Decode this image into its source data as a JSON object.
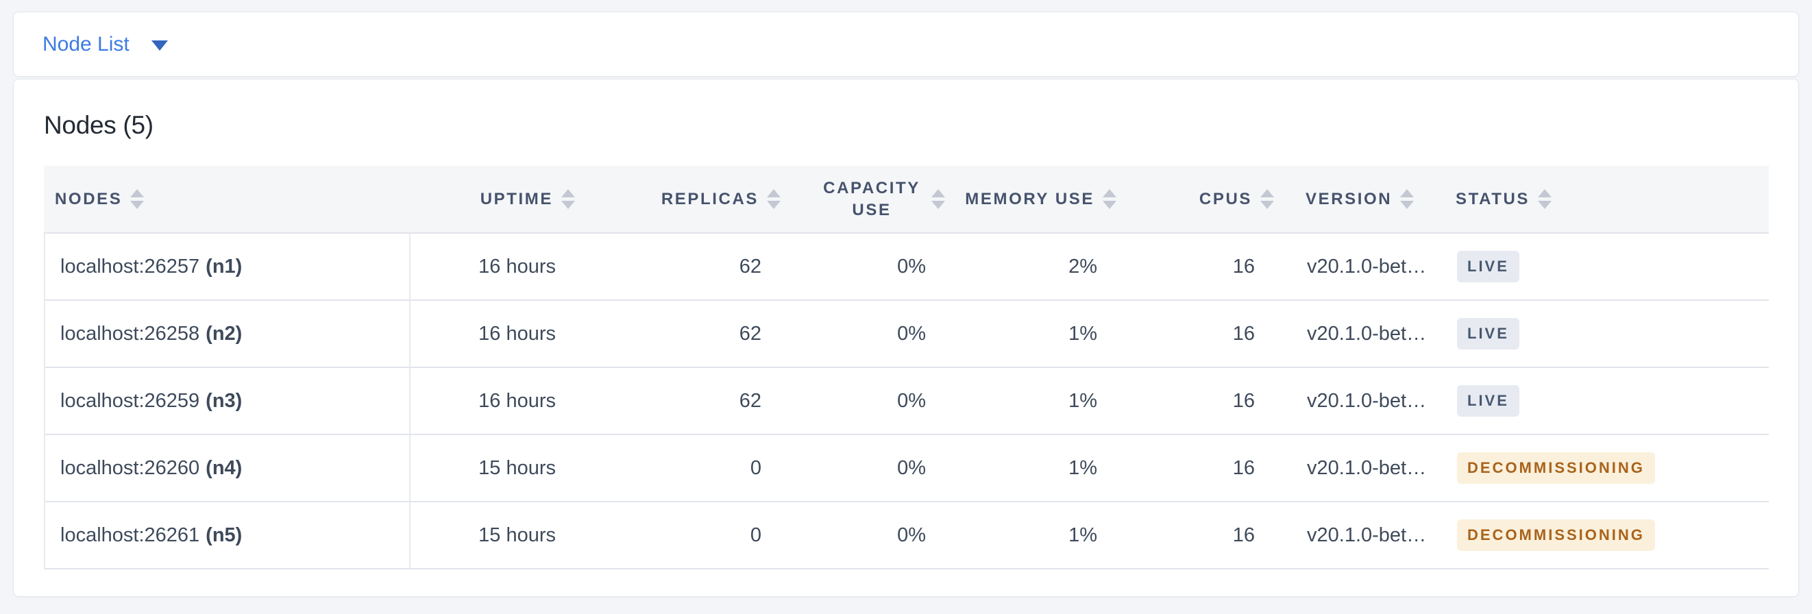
{
  "topbar": {
    "dropdown_label": "Node List"
  },
  "main": {
    "title": "Nodes (5)"
  },
  "table": {
    "columns": [
      {
        "id": "nodes",
        "label": "NODES"
      },
      {
        "id": "uptime",
        "label": "UPTIME"
      },
      {
        "id": "replicas",
        "label": "REPLICAS"
      },
      {
        "id": "capacity",
        "label": "CAPACITY USE"
      },
      {
        "id": "memory",
        "label": "MEMORY USE"
      },
      {
        "id": "cpus",
        "label": "CPUS"
      },
      {
        "id": "version",
        "label": "VERSION"
      },
      {
        "id": "status",
        "label": "STATUS"
      }
    ],
    "rows": [
      {
        "node_address": "localhost:26257",
        "node_id": "(n1)",
        "uptime": "16 hours",
        "replicas": "62",
        "capacity_use": "0%",
        "memory_use": "2%",
        "cpus": "16",
        "version": "v20.1.0-bet…",
        "status": "LIVE",
        "status_variant": "live"
      },
      {
        "node_address": "localhost:26258",
        "node_id": "(n2)",
        "uptime": "16 hours",
        "replicas": "62",
        "capacity_use": "0%",
        "memory_use": "1%",
        "cpus": "16",
        "version": "v20.1.0-bet…",
        "status": "LIVE",
        "status_variant": "live"
      },
      {
        "node_address": "localhost:26259",
        "node_id": "(n3)",
        "uptime": "16 hours",
        "replicas": "62",
        "capacity_use": "0%",
        "memory_use": "1%",
        "cpus": "16",
        "version": "v20.1.0-bet…",
        "status": "LIVE",
        "status_variant": "live"
      },
      {
        "node_address": "localhost:26260",
        "node_id": "(n4)",
        "uptime": "15 hours",
        "replicas": "0",
        "capacity_use": "0%",
        "memory_use": "1%",
        "cpus": "16",
        "version": "v20.1.0-bet…",
        "status": "DECOMMISSIONING",
        "status_variant": "decommissioning"
      },
      {
        "node_address": "localhost:26261",
        "node_id": "(n5)",
        "uptime": "15 hours",
        "replicas": "0",
        "capacity_use": "0%",
        "memory_use": "1%",
        "cpus": "16",
        "version": "v20.1.0-bet…",
        "status": "DECOMMISSIONING",
        "status_variant": "decommissioning"
      }
    ]
  },
  "colors": {
    "page_background": "#F3F5F9",
    "link_blue": "#3D7BE2",
    "header_text": "#46536D",
    "cell_text": "#3E4A5B",
    "badge_live_bg": "#E7EAF1",
    "badge_live_text": "#475870",
    "badge_decommissioning_bg": "#FBF0DB",
    "badge_decommissioning_text": "#A8631C"
  }
}
